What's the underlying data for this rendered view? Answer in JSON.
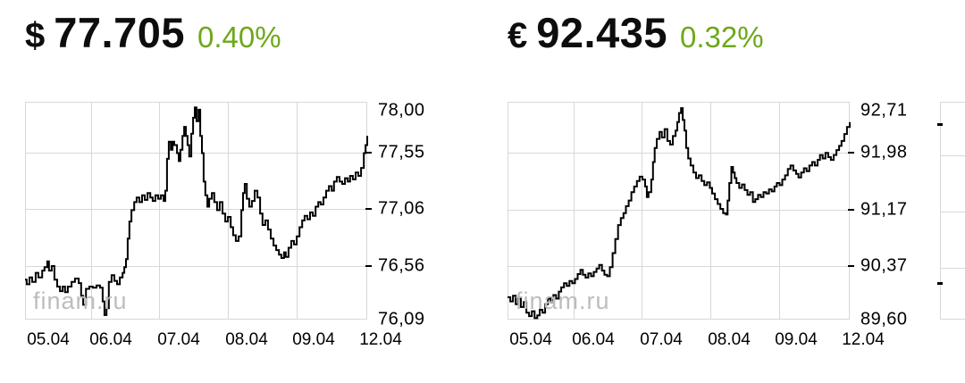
{
  "page": {
    "background": "#ffffff",
    "grid_color": "#d8d8d8",
    "line_color": "#000000"
  },
  "chart_data": [
    {
      "type": "line",
      "title": "USD quote with intraday chart",
      "currency_symbol": "$",
      "price": "77.705",
      "change_percent": "0.40%",
      "change_color": "#6ea81a",
      "watermark": "finam.ru",
      "x_tick_labels": [
        "05.04",
        "06.04",
        "07.04",
        "08.04",
        "09.04",
        "12.04"
      ],
      "y_tick_labels": [
        "78,00",
        "77,55",
        "77,06",
        "76,56",
        "76,09"
      ],
      "y_tick_values": [
        78.0,
        77.55,
        77.06,
        76.56,
        76.09
      ],
      "ylim": [
        76.09,
        78.0
      ],
      "grid": true,
      "legend": "none",
      "points": [
        [
          0.0,
          76.44
        ],
        [
          0.005,
          76.4
        ],
        [
          0.013,
          76.46
        ],
        [
          0.021,
          76.42
        ],
        [
          0.031,
          76.5
        ],
        [
          0.039,
          76.46
        ],
        [
          0.05,
          76.52
        ],
        [
          0.057,
          76.55
        ],
        [
          0.065,
          76.6
        ],
        [
          0.07,
          76.52
        ],
        [
          0.078,
          76.56
        ],
        [
          0.086,
          76.44
        ],
        [
          0.094,
          76.38
        ],
        [
          0.102,
          76.34
        ],
        [
          0.11,
          76.38
        ],
        [
          0.117,
          76.33
        ],
        [
          0.125,
          76.38
        ],
        [
          0.136,
          76.42
        ],
        [
          0.146,
          76.45
        ],
        [
          0.157,
          76.41
        ],
        [
          0.164,
          76.3
        ],
        [
          0.17,
          76.22
        ],
        [
          0.178,
          76.36
        ],
        [
          0.188,
          76.38
        ],
        [
          0.198,
          76.37
        ],
        [
          0.209,
          76.39
        ],
        [
          0.219,
          76.37
        ],
        [
          0.227,
          76.25
        ],
        [
          0.232,
          76.13
        ],
        [
          0.238,
          76.19
        ],
        [
          0.245,
          76.42
        ],
        [
          0.253,
          76.48
        ],
        [
          0.261,
          76.43
        ],
        [
          0.269,
          76.4
        ],
        [
          0.277,
          76.46
        ],
        [
          0.285,
          76.5
        ],
        [
          0.29,
          76.55
        ],
        [
          0.295,
          76.62
        ],
        [
          0.3,
          76.8
        ],
        [
          0.305,
          76.95
        ],
        [
          0.311,
          77.05
        ],
        [
          0.319,
          77.12
        ],
        [
          0.326,
          77.16
        ],
        [
          0.334,
          77.12
        ],
        [
          0.342,
          77.18
        ],
        [
          0.35,
          77.14
        ],
        [
          0.358,
          77.2
        ],
        [
          0.366,
          77.16
        ],
        [
          0.373,
          77.13
        ],
        [
          0.381,
          77.18
        ],
        [
          0.389,
          77.15
        ],
        [
          0.397,
          77.18
        ],
        [
          0.405,
          77.13
        ],
        [
          0.41,
          77.22
        ],
        [
          0.415,
          77.5
        ],
        [
          0.42,
          77.65
        ],
        [
          0.426,
          77.58
        ],
        [
          0.431,
          77.65
        ],
        [
          0.436,
          77.62
        ],
        [
          0.444,
          77.55
        ],
        [
          0.449,
          77.48
        ],
        [
          0.454,
          77.58
        ],
        [
          0.46,
          77.7
        ],
        [
          0.465,
          77.78
        ],
        [
          0.47,
          77.7
        ],
        [
          0.475,
          77.62
        ],
        [
          0.48,
          77.52
        ],
        [
          0.486,
          77.72
        ],
        [
          0.491,
          77.86
        ],
        [
          0.496,
          77.95
        ],
        [
          0.501,
          77.83
        ],
        [
          0.507,
          77.93
        ],
        [
          0.512,
          77.7
        ],
        [
          0.517,
          77.55
        ],
        [
          0.522,
          77.3
        ],
        [
          0.527,
          77.18
        ],
        [
          0.533,
          77.08
        ],
        [
          0.538,
          77.15
        ],
        [
          0.546,
          77.2
        ],
        [
          0.553,
          77.12
        ],
        [
          0.561,
          77.05
        ],
        [
          0.569,
          77.12
        ],
        [
          0.577,
          77.02
        ],
        [
          0.585,
          76.95
        ],
        [
          0.593,
          76.99
        ],
        [
          0.601,
          76.9
        ],
        [
          0.608,
          76.83
        ],
        [
          0.616,
          76.78
        ],
        [
          0.624,
          76.82
        ],
        [
          0.632,
          77.05
        ],
        [
          0.637,
          77.2
        ],
        [
          0.642,
          77.28
        ],
        [
          0.648,
          77.15
        ],
        [
          0.655,
          77.08
        ],
        [
          0.663,
          77.13
        ],
        [
          0.671,
          77.22
        ],
        [
          0.679,
          77.16
        ],
        [
          0.687,
          77.02
        ],
        [
          0.694,
          76.92
        ],
        [
          0.702,
          76.96
        ],
        [
          0.71,
          76.88
        ],
        [
          0.718,
          76.8
        ],
        [
          0.726,
          76.74
        ],
        [
          0.734,
          76.7
        ],
        [
          0.742,
          76.66
        ],
        [
          0.749,
          76.63
        ],
        [
          0.757,
          76.68
        ],
        [
          0.762,
          76.64
        ],
        [
          0.77,
          76.72
        ],
        [
          0.778,
          76.78
        ],
        [
          0.786,
          76.75
        ],
        [
          0.794,
          76.82
        ],
        [
          0.802,
          76.9
        ],
        [
          0.81,
          76.96
        ],
        [
          0.817,
          77.0
        ],
        [
          0.825,
          76.97
        ],
        [
          0.833,
          77.03
        ],
        [
          0.841,
          77.0
        ],
        [
          0.849,
          77.08
        ],
        [
          0.857,
          77.12
        ],
        [
          0.864,
          77.1
        ],
        [
          0.872,
          77.16
        ],
        [
          0.88,
          77.22
        ],
        [
          0.888,
          77.26
        ],
        [
          0.896,
          77.22
        ],
        [
          0.903,
          77.3
        ],
        [
          0.911,
          77.34
        ],
        [
          0.919,
          77.3
        ],
        [
          0.927,
          77.28
        ],
        [
          0.935,
          77.33
        ],
        [
          0.943,
          77.3
        ],
        [
          0.95,
          77.35
        ],
        [
          0.958,
          77.32
        ],
        [
          0.966,
          77.38
        ],
        [
          0.974,
          77.35
        ],
        [
          0.982,
          77.42
        ],
        [
          0.99,
          77.55
        ],
        [
          0.995,
          77.62
        ],
        [
          1.0,
          77.7
        ]
      ]
    },
    {
      "type": "line",
      "title": "EUR quote with intraday chart",
      "currency_symbol": "€",
      "price": "92.435",
      "change_percent": "0.32%",
      "change_color": "#6ea81a",
      "watermark": "finam.ru",
      "x_tick_labels": [
        "05.04",
        "06.04",
        "07.04",
        "08.04",
        "09.04",
        "12.04"
      ],
      "y_tick_labels": [
        "92,71",
        "91,98",
        "91,17",
        "90,37",
        "89,60"
      ],
      "y_tick_values": [
        92.71,
        91.98,
        91.17,
        90.37,
        89.6
      ],
      "ylim": [
        89.6,
        92.71
      ],
      "grid": true,
      "legend": "none",
      "points": [
        [
          0.0,
          89.92
        ],
        [
          0.008,
          89.86
        ],
        [
          0.016,
          89.94
        ],
        [
          0.024,
          89.82
        ],
        [
          0.031,
          89.9
        ],
        [
          0.039,
          89.78
        ],
        [
          0.047,
          89.85
        ],
        [
          0.055,
          89.7
        ],
        [
          0.063,
          89.65
        ],
        [
          0.071,
          89.72
        ],
        [
          0.079,
          89.62
        ],
        [
          0.087,
          89.66
        ],
        [
          0.094,
          89.74
        ],
        [
          0.102,
          89.7
        ],
        [
          0.11,
          89.82
        ],
        [
          0.118,
          89.9
        ],
        [
          0.126,
          89.85
        ],
        [
          0.134,
          89.95
        ],
        [
          0.142,
          89.9
        ],
        [
          0.15,
          90.0
        ],
        [
          0.157,
          90.06
        ],
        [
          0.165,
          90.12
        ],
        [
          0.173,
          90.08
        ],
        [
          0.181,
          90.15
        ],
        [
          0.189,
          90.12
        ],
        [
          0.197,
          90.18
        ],
        [
          0.205,
          90.25
        ],
        [
          0.213,
          90.31
        ],
        [
          0.22,
          90.24
        ],
        [
          0.228,
          90.2
        ],
        [
          0.236,
          90.26
        ],
        [
          0.244,
          90.22
        ],
        [
          0.252,
          90.28
        ],
        [
          0.26,
          90.33
        ],
        [
          0.268,
          90.38
        ],
        [
          0.276,
          90.3
        ],
        [
          0.283,
          90.24
        ],
        [
          0.291,
          90.22
        ],
        [
          0.299,
          90.35
        ],
        [
          0.307,
          90.55
        ],
        [
          0.315,
          90.75
        ],
        [
          0.323,
          90.95
        ],
        [
          0.331,
          91.05
        ],
        [
          0.339,
          91.12
        ],
        [
          0.346,
          91.22
        ],
        [
          0.354,
          91.3
        ],
        [
          0.362,
          91.42
        ],
        [
          0.37,
          91.5
        ],
        [
          0.378,
          91.58
        ],
        [
          0.386,
          91.64
        ],
        [
          0.394,
          91.6
        ],
        [
          0.402,
          91.5
        ],
        [
          0.407,
          91.35
        ],
        [
          0.412,
          91.42
        ],
        [
          0.42,
          91.6
        ],
        [
          0.425,
          91.85
        ],
        [
          0.43,
          92.05
        ],
        [
          0.436,
          92.18
        ],
        [
          0.444,
          92.28
        ],
        [
          0.451,
          92.2
        ],
        [
          0.459,
          92.32
        ],
        [
          0.467,
          92.15
        ],
        [
          0.475,
          92.1
        ],
        [
          0.483,
          92.22
        ],
        [
          0.491,
          92.3
        ],
        [
          0.496,
          92.42
        ],
        [
          0.501,
          92.55
        ],
        [
          0.507,
          92.62
        ],
        [
          0.512,
          92.45
        ],
        [
          0.517,
          92.3
        ],
        [
          0.522,
          92.05
        ],
        [
          0.528,
          91.9
        ],
        [
          0.535,
          91.8
        ],
        [
          0.543,
          91.7
        ],
        [
          0.551,
          91.62
        ],
        [
          0.559,
          91.66
        ],
        [
          0.567,
          91.58
        ],
        [
          0.575,
          91.52
        ],
        [
          0.583,
          91.56
        ],
        [
          0.591,
          91.48
        ],
        [
          0.598,
          91.4
        ],
        [
          0.606,
          91.32
        ],
        [
          0.614,
          91.25
        ],
        [
          0.622,
          91.18
        ],
        [
          0.63,
          91.12
        ],
        [
          0.638,
          91.1
        ],
        [
          0.643,
          91.3
        ],
        [
          0.648,
          91.55
        ],
        [
          0.654,
          91.78
        ],
        [
          0.659,
          91.7
        ],
        [
          0.664,
          91.62
        ],
        [
          0.669,
          91.55
        ],
        [
          0.677,
          91.48
        ],
        [
          0.685,
          91.53
        ],
        [
          0.693,
          91.45
        ],
        [
          0.701,
          91.38
        ],
        [
          0.709,
          91.42
        ],
        [
          0.717,
          91.28
        ],
        [
          0.724,
          91.32
        ],
        [
          0.732,
          91.38
        ],
        [
          0.74,
          91.35
        ],
        [
          0.748,
          91.42
        ],
        [
          0.756,
          91.4
        ],
        [
          0.764,
          91.46
        ],
        [
          0.772,
          91.43
        ],
        [
          0.78,
          91.5
        ],
        [
          0.787,
          91.55
        ],
        [
          0.795,
          91.52
        ],
        [
          0.803,
          91.6
        ],
        [
          0.811,
          91.66
        ],
        [
          0.819,
          91.75
        ],
        [
          0.827,
          91.8
        ],
        [
          0.835,
          91.73
        ],
        [
          0.843,
          91.68
        ],
        [
          0.85,
          91.63
        ],
        [
          0.858,
          91.7
        ],
        [
          0.866,
          91.76
        ],
        [
          0.874,
          91.72
        ],
        [
          0.882,
          91.8
        ],
        [
          0.89,
          91.85
        ],
        [
          0.898,
          91.8
        ],
        [
          0.906,
          91.88
        ],
        [
          0.913,
          91.95
        ],
        [
          0.921,
          91.9
        ],
        [
          0.929,
          91.98
        ],
        [
          0.937,
          91.92
        ],
        [
          0.945,
          91.88
        ],
        [
          0.953,
          91.95
        ],
        [
          0.961,
          92.02
        ],
        [
          0.969,
          92.08
        ],
        [
          0.976,
          92.15
        ],
        [
          0.984,
          92.25
        ],
        [
          0.992,
          92.35
        ],
        [
          1.0,
          92.42
        ]
      ]
    }
  ]
}
